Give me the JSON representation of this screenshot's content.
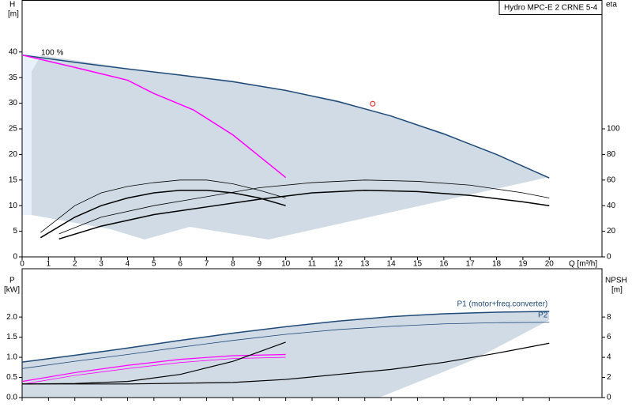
{
  "chart_data": [
    {
      "type": "line",
      "title": "Hydro MPC-E 2 CRNE 5-4",
      "y_label": "H",
      "y_unit": "[m]",
      "y2_label": "eta",
      "x_label": "Q [m³/h]",
      "annotation": "100 %",
      "xlim": [
        0,
        22
      ],
      "xticks": [
        0,
        1,
        2,
        3,
        4,
        5,
        6,
        7,
        8,
        9,
        10,
        11,
        12,
        13,
        14,
        15,
        16,
        17,
        18,
        19,
        20
      ],
      "ylim": [
        0,
        50
      ],
      "yticks": [
        0,
        5,
        10,
        15,
        20,
        25,
        30,
        35,
        40
      ],
      "y2lim": [
        0,
        200
      ],
      "y2ticks": [
        0,
        20,
        40,
        60,
        80,
        100
      ],
      "duty_point": {
        "x": 13.3,
        "y": 29.9,
        "color": "#e02020"
      },
      "series": [
        {
          "color": "#1f4a78",
          "width": 1.5,
          "x": [
            0,
            2,
            4,
            6,
            8,
            10,
            12,
            14,
            16,
            18,
            20
          ],
          "values": [
            39.4,
            38,
            36.7,
            35.5,
            34.2,
            32.5,
            30.3,
            27.5,
            24,
            20,
            15.4
          ]
        },
        {
          "color": "#ff00ff",
          "width": 1.5,
          "x": [
            0,
            2,
            4,
            5,
            6.5,
            8,
            10
          ],
          "values": [
            39.4,
            37,
            34.5,
            31.9,
            28.7,
            23.8,
            15.5
          ]
        },
        {
          "color": "#000000",
          "width": 0.8,
          "axis": "y2",
          "x": [
            0.7,
            2,
            3,
            4,
            5,
            6,
            7,
            8,
            9,
            10
          ],
          "values": [
            19,
            40,
            50,
            55,
            58,
            60,
            60,
            57,
            52,
            46
          ]
        },
        {
          "color": "#000000",
          "width": 1.5,
          "axis": "y2",
          "x": [
            0.7,
            2,
            3,
            4,
            5,
            6,
            7,
            8,
            9,
            10
          ],
          "values": [
            15,
            31,
            40,
            46,
            50,
            52,
            52,
            50,
            46,
            40
          ]
        },
        {
          "color": "#000000",
          "width": 0.8,
          "axis": "y2",
          "x": [
            1.4,
            3,
            5,
            7,
            9,
            11,
            13,
            15,
            17,
            19,
            20
          ],
          "values": [
            18,
            31,
            40,
            47,
            54,
            58,
            60,
            59,
            56,
            50,
            46
          ]
        },
        {
          "color": "#000000",
          "width": 1.5,
          "axis": "y2",
          "x": [
            1.4,
            3,
            5,
            7,
            9,
            11,
            13,
            15,
            17,
            19,
            20
          ],
          "values": [
            14,
            24,
            33,
            39,
            45,
            50,
            52,
            51,
            48,
            43,
            40
          ]
        }
      ]
    },
    {
      "type": "line",
      "y_label": "P",
      "y_unit": "[kW]",
      "y2_label": "NPSH",
      "y2_unit": "[m]",
      "xlim": [
        0,
        22
      ],
      "ylim": [
        0,
        3.2
      ],
      "yticks": [
        {
          "value": 0,
          "label": "0.0"
        },
        0.5,
        {
          "value": 1,
          "label": "1.0"
        },
        1.5,
        {
          "value": 2,
          "label": "2.0"
        }
      ],
      "y2lim": [
        0,
        12.8
      ],
      "y2ticks": [
        0,
        2,
        4,
        6,
        8
      ],
      "series": [
        {
          "name": "P1 (motor+freq.converter)",
          "color": "#1f4a78",
          "width": 1.5,
          "x": [
            0,
            2,
            4,
            6,
            8,
            10,
            12,
            14,
            16,
            18,
            20
          ],
          "values": [
            0.88,
            1.05,
            1.23,
            1.42,
            1.6,
            1.76,
            1.9,
            2.01,
            2.08,
            2.12,
            2.14
          ]
        },
        {
          "name": "P2",
          "color": "#1f4a78",
          "width": 0.8,
          "x": [
            0,
            2,
            4,
            6,
            8,
            10,
            12,
            14,
            16,
            18,
            20
          ],
          "values": [
            0.72,
            0.9,
            1.07,
            1.25,
            1.42,
            1.57,
            1.69,
            1.77,
            1.83,
            1.86,
            1.87
          ]
        },
        {
          "color": "#ff00ff",
          "width": 1.2,
          "x": [
            0,
            2,
            4,
            6,
            8,
            10
          ],
          "values": [
            0.4,
            0.62,
            0.8,
            0.95,
            1.04,
            1.07
          ]
        },
        {
          "color": "#ff00ff",
          "width": 0.8,
          "x": [
            0,
            2,
            4,
            6,
            8,
            10
          ],
          "values": [
            0.33,
            0.55,
            0.72,
            0.87,
            0.97,
            1.0
          ]
        },
        {
          "color": "#000000",
          "width": 1.2,
          "axis": "y2",
          "x": [
            0,
            2,
            4,
            6,
            8,
            10
          ],
          "values": [
            1.35,
            1.4,
            1.6,
            2.3,
            3.6,
            5.5
          ]
        },
        {
          "color": "#000000",
          "width": 1.2,
          "axis": "y2",
          "x": [
            0,
            4,
            8,
            10,
            12,
            14,
            16,
            18,
            20
          ],
          "values": [
            1.35,
            1.35,
            1.5,
            1.8,
            2.3,
            2.8,
            3.5,
            4.4,
            5.4
          ]
        }
      ]
    }
  ]
}
